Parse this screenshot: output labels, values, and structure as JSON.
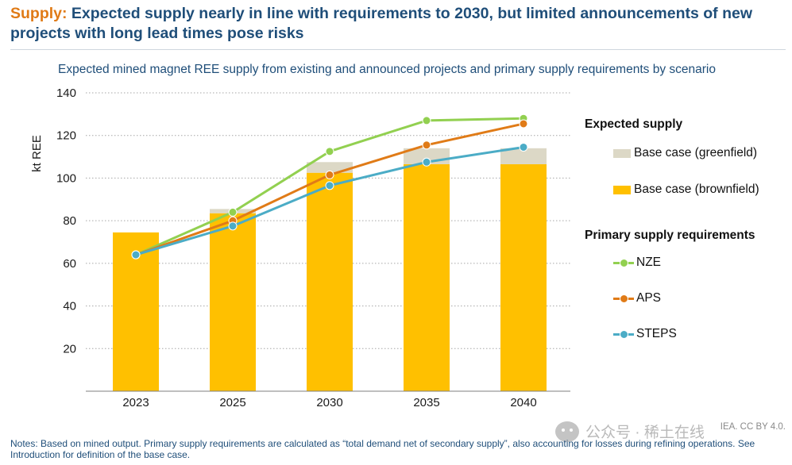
{
  "headline": {
    "kicker": "Supply:",
    "text": "Expected supply nearly in line with requirements to 2030, but limited announcements of new projects with long lead times pose risks"
  },
  "chart_data": {
    "type": "bar",
    "title": "Expected mined magnet REE supply from existing and announced projects and primary supply requirements by scenario",
    "xlabel": "",
    "ylabel": "kt REE",
    "ylim": [
      0,
      140
    ],
    "yticks": [
      20,
      40,
      60,
      80,
      100,
      120,
      140
    ],
    "categories": [
      "2023",
      "2025",
      "2030",
      "2035",
      "2040"
    ],
    "stacked_bars": [
      {
        "name": "Base case (brownfield)",
        "color": "#ffc000",
        "values": [
          74.5,
          83.5,
          102.5,
          106.5,
          106.5
        ]
      },
      {
        "name": "Base case (greenfield)",
        "color": "#dcd8c6",
        "values": [
          0,
          2,
          5,
          7.5,
          7.5
        ]
      }
    ],
    "series": [
      {
        "name": "NZE",
        "color": "#92d050",
        "values": [
          64,
          84,
          112.5,
          127,
          128
        ]
      },
      {
        "name": "APS",
        "color": "#e07b17",
        "values": [
          64,
          80,
          101.5,
          115.5,
          125.5
        ]
      },
      {
        "name": "STEPS",
        "color": "#4bacc6",
        "values": [
          64,
          77.5,
          96.5,
          107.5,
          114.5
        ]
      }
    ],
    "grid": true,
    "legend_position": "right"
  },
  "legend": {
    "supply_title": "Expected supply",
    "requirements_title": "Primary supply requirements"
  },
  "notes": "Notes: Based on mined output. Primary supply requirements are calculated as “total demand net of secondary supply”, also accounting for losses during refining operations. See Introduction for definition of the base case.",
  "credit": "IEA. CC BY 4.0.",
  "watermark": "公众号 · 稀土在线"
}
